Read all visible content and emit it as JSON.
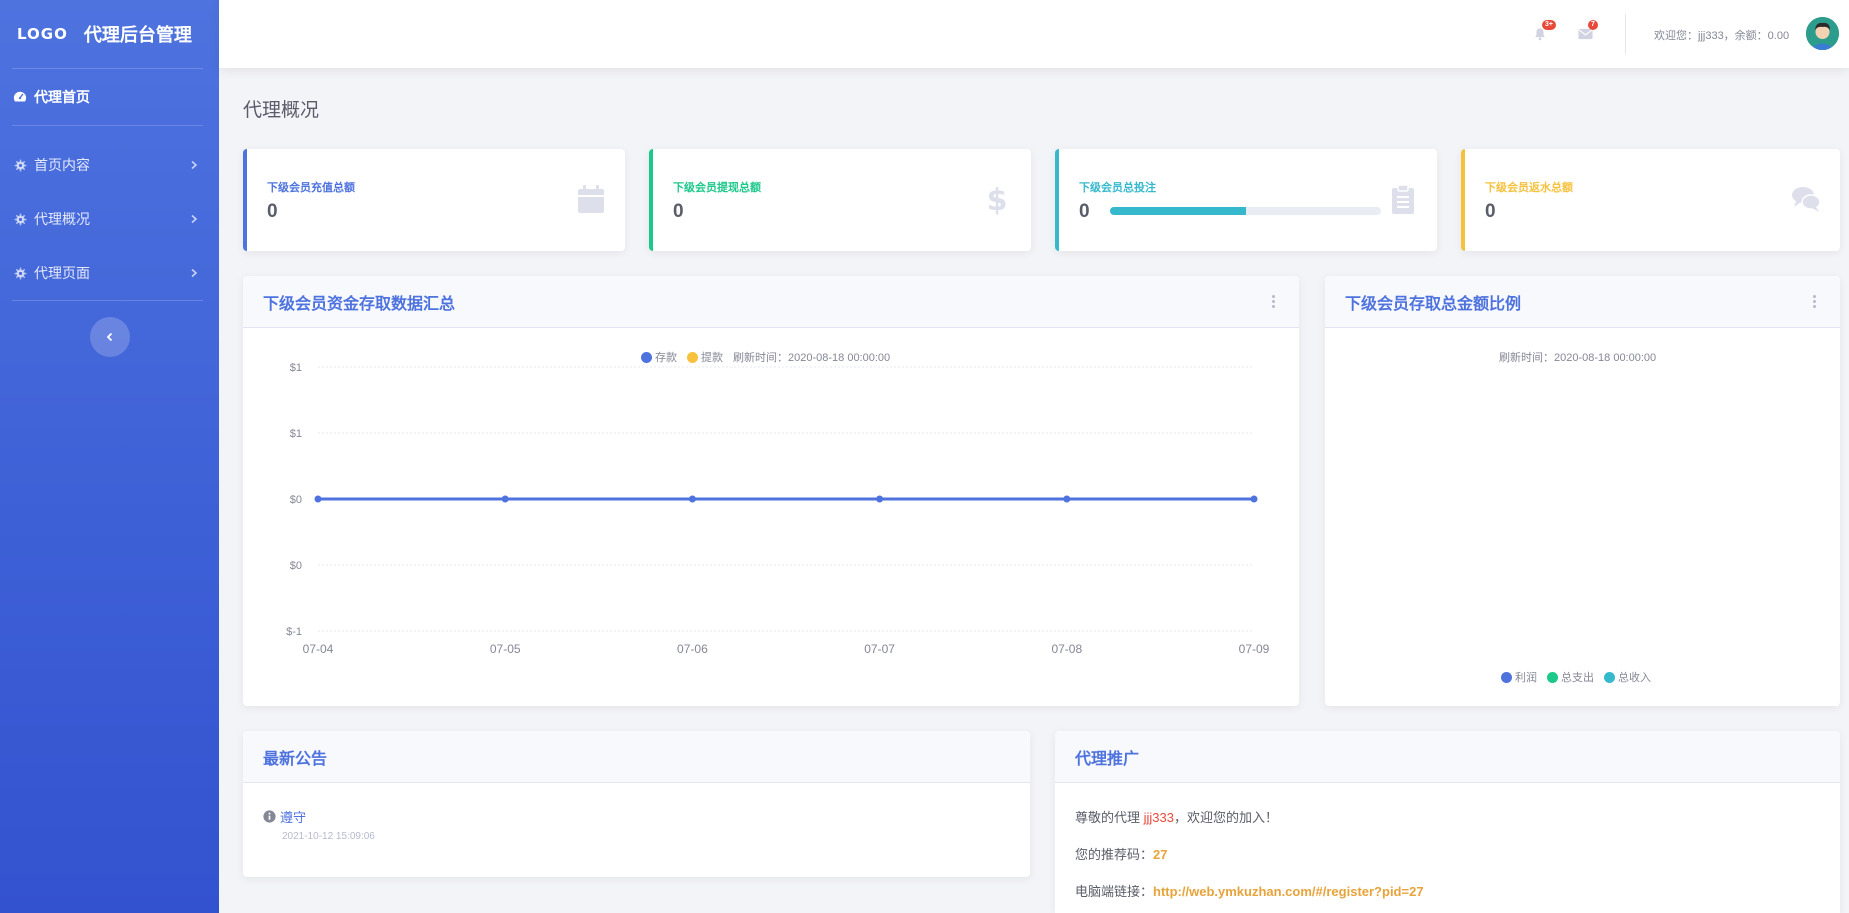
{
  "brand": {
    "logo": "LOGO",
    "title": "代理后台管理"
  },
  "sidebar": {
    "items": [
      {
        "label": "代理首页"
      },
      {
        "label": "首页内容"
      },
      {
        "label": "代理概况"
      },
      {
        "label": "代理页面"
      }
    ]
  },
  "topbar": {
    "alerts_badge": "3+",
    "messages_badge": "7",
    "welcome": "欢迎您：jjj333，余额：0.00"
  },
  "page_title": "代理概况",
  "stats": [
    {
      "label": "下级会员充值总额",
      "value": "0",
      "color": "#4e73df",
      "icon": "calendar-icon"
    },
    {
      "label": "下级会员提现总额",
      "value": "0",
      "color": "#1cc88a",
      "icon": "dollar-icon"
    },
    {
      "label": "下级会员总投注",
      "value": "0",
      "color": "#36b9cc",
      "icon": "clipboard-icon",
      "progress_percent": 50
    },
    {
      "label": "下级会员返水总额",
      "value": "0",
      "color": "#f6c23e",
      "icon": "comments-icon"
    }
  ],
  "line_card": {
    "title": "下级会员资金存取数据汇总",
    "legend": [
      {
        "name": "存款",
        "color": "#4e73df"
      },
      {
        "name": "提款",
        "color": "#f6c23e"
      }
    ],
    "refresh": "刷新时间：2020-08-18 00:00:00"
  },
  "chart_data": [
    {
      "type": "line",
      "title": "下级会员资金存取数据汇总",
      "x": [
        "07-04",
        "07-05",
        "07-06",
        "07-07",
        "07-08",
        "07-09"
      ],
      "y_ticks": [
        "$1",
        "$1",
        "$0",
        "$0",
        "$-1"
      ],
      "ylim": [
        -1,
        1
      ],
      "grid": true,
      "legend_position": "top",
      "series": [
        {
          "name": "存款",
          "values": [
            0,
            0,
            0,
            0,
            0,
            0
          ],
          "color": "#4e73df"
        }
      ]
    },
    {
      "type": "pie",
      "title": "下级会员存取总金额比例",
      "series": [
        {
          "name": "利润",
          "values": [],
          "color": "#4e73df"
        },
        {
          "name": "总支出",
          "values": [],
          "color": "#1cc88a"
        },
        {
          "name": "总收入",
          "values": [],
          "color": "#36b9cc"
        }
      ],
      "legend_position": "bottom"
    }
  ],
  "pie_card": {
    "title": "下级会员存取总金额比例",
    "refresh": "刷新时间：2020-08-18 00:00:00",
    "legend": [
      {
        "name": "利润",
        "color": "#4e73df"
      },
      {
        "name": "总支出",
        "color": "#1cc88a"
      },
      {
        "name": "总收入",
        "color": "#36b9cc"
      }
    ]
  },
  "notice_card": {
    "title": "最新公告",
    "items": [
      {
        "title": "遵守",
        "date": "2021-10-12 15:09:06"
      }
    ]
  },
  "promo_card": {
    "title": "代理推广",
    "greet_prefix": "尊敬的代理 ",
    "username": "jjj333",
    "greet_suffix": "，欢迎您的加入！",
    "code_label": "您的推荐码：",
    "code": "27",
    "link_label": "电脑端链接：",
    "link": "http://web.ymkuzhan.com/#/register?pid=27"
  }
}
